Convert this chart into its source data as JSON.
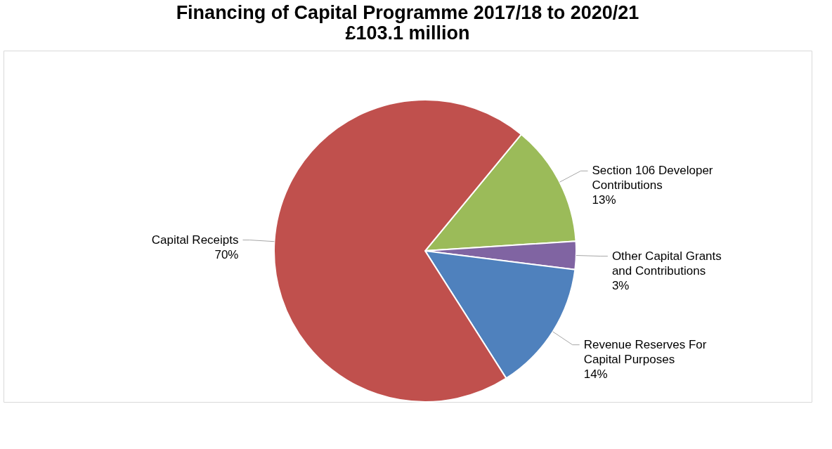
{
  "chart_data": {
    "type": "pie",
    "title": [
      "Financing of Capital Programme 2017/18 to 2020/21",
      "£103.1 million"
    ],
    "categories": [
      "Section 106 Developer Contributions",
      "Other Capital Grants and Contributions",
      "Revenue Reserves For Capital Purposes",
      "Capital Receipts"
    ],
    "values": [
      13,
      3,
      14,
      70
    ],
    "value_labels": [
      "13%",
      "3%",
      "14%",
      "70%"
    ],
    "colors": [
      "#9bbb59",
      "#8064a2",
      "#4f81bd",
      "#c0504d"
    ],
    "legend": false
  }
}
